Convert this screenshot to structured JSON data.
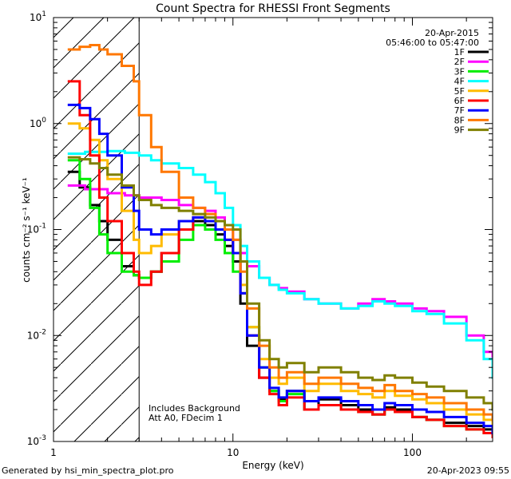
{
  "chart_data": {
    "type": "line",
    "title": "Count Spectra for RHESSI Front Segments",
    "xlabel": "Energy (keV)",
    "ylabel": "counts cm⁻² s⁻¹ keV⁻¹",
    "xscale": "log",
    "yscale": "log",
    "xlim": [
      1,
      280
    ],
    "ylim": [
      0.001,
      10
    ],
    "x_ticks": [
      {
        "value": 1,
        "label": "1"
      },
      {
        "value": 10,
        "label": "10"
      },
      {
        "value": 100,
        "label": "100"
      }
    ],
    "y_ticks": [
      {
        "value": 0.001,
        "base": "10",
        "exp": "-3"
      },
      {
        "value": 0.01,
        "base": "10",
        "exp": "-2"
      },
      {
        "value": 0.1,
        "base": "10",
        "exp": "-1"
      },
      {
        "value": 1,
        "base": "10",
        "exp": "0"
      },
      {
        "value": 10,
        "base": "10",
        "exp": "1"
      }
    ],
    "legend": {
      "date": "20-Apr-2015",
      "time_range": "05:46:00 to 05:47:00",
      "placement": "top-right"
    },
    "annotations": [
      "Includes Background",
      "Att A0, FDecim 1"
    ],
    "hatched_region_keV": [
      1,
      3
    ],
    "series": [
      {
        "name": "1F",
        "color": "#000000",
        "x": [
          1.2,
          1.4,
          1.6,
          1.8,
          2.0,
          2.4,
          2.8,
          3.0,
          3.5,
          4.0,
          5.0,
          6.0,
          7.0,
          8.0,
          9.0,
          10,
          11,
          12,
          14,
          16,
          18,
          20,
          25,
          30,
          40,
          50,
          60,
          70,
          80,
          100,
          120,
          150,
          200,
          250,
          280
        ],
        "y": [
          0.35,
          0.25,
          0.17,
          0.12,
          0.08,
          0.045,
          0.037,
          0.035,
          0.04,
          0.06,
          0.1,
          0.12,
          0.11,
          0.09,
          0.07,
          0.05,
          0.02,
          0.008,
          0.004,
          0.003,
          0.0025,
          0.003,
          0.002,
          0.0025,
          0.0022,
          0.002,
          0.0018,
          0.0021,
          0.002,
          0.0017,
          0.0016,
          0.0015,
          0.0014,
          0.0013,
          0.0012
        ]
      },
      {
        "name": "2F",
        "color": "#ff00ff",
        "x": [
          1.2,
          1.5,
          2.0,
          2.5,
          3.0,
          4.0,
          5.0,
          6.0,
          7.0,
          8.0,
          9.0,
          10,
          11,
          12,
          14,
          16,
          18,
          20,
          25,
          30,
          40,
          50,
          60,
          70,
          80,
          100,
          120,
          150,
          200,
          250,
          280
        ],
        "y": [
          0.26,
          0.24,
          0.22,
          0.21,
          0.2,
          0.19,
          0.17,
          0.16,
          0.15,
          0.13,
          0.1,
          0.08,
          0.06,
          0.045,
          0.035,
          0.03,
          0.028,
          0.026,
          0.022,
          0.02,
          0.018,
          0.02,
          0.022,
          0.021,
          0.02,
          0.018,
          0.017,
          0.015,
          0.01,
          0.007,
          0.005
        ]
      },
      {
        "name": "3F",
        "color": "#00ee00",
        "x": [
          1.2,
          1.4,
          1.6,
          1.8,
          2.0,
          2.4,
          2.8,
          3.0,
          3.5,
          4.0,
          5.0,
          6.0,
          7.0,
          8.0,
          9.0,
          10,
          11,
          12,
          14,
          16,
          18,
          20,
          25,
          30,
          40,
          50,
          60,
          70,
          80,
          100,
          120,
          150,
          200,
          250,
          280
        ],
        "y": [
          0.45,
          0.3,
          0.16,
          0.09,
          0.06,
          0.04,
          0.037,
          0.035,
          0.04,
          0.05,
          0.08,
          0.11,
          0.1,
          0.08,
          0.06,
          0.04,
          0.025,
          0.012,
          0.005,
          0.003,
          0.0024,
          0.0028,
          0.002,
          0.0022,
          0.002,
          0.0019,
          0.0018,
          0.002,
          0.0019,
          0.0017,
          0.0016,
          0.0014,
          0.0013,
          0.0012,
          0.0011
        ]
      },
      {
        "name": "4F",
        "color": "#00ffff",
        "x": [
          1.2,
          1.5,
          2.0,
          2.5,
          3.0,
          3.5,
          4.0,
          5.0,
          6.0,
          7.0,
          8.0,
          9.0,
          10,
          11,
          12,
          14,
          16,
          18,
          20,
          25,
          30,
          40,
          50,
          60,
          70,
          80,
          100,
          120,
          150,
          200,
          250,
          280
        ],
        "y": [
          0.52,
          0.54,
          0.55,
          0.53,
          0.5,
          0.45,
          0.42,
          0.38,
          0.33,
          0.28,
          0.22,
          0.16,
          0.11,
          0.07,
          0.05,
          0.035,
          0.03,
          0.027,
          0.025,
          0.022,
          0.02,
          0.018,
          0.019,
          0.021,
          0.02,
          0.019,
          0.017,
          0.016,
          0.013,
          0.009,
          0.006,
          0.004
        ]
      },
      {
        "name": "5F",
        "color": "#ffbb00",
        "x": [
          1.2,
          1.4,
          1.6,
          1.8,
          2.0,
          2.4,
          2.8,
          3.0,
          3.5,
          4.0,
          5.0,
          6.0,
          7.0,
          8.0,
          9.0,
          10,
          11,
          12,
          14,
          16,
          18,
          20,
          25,
          30,
          40,
          50,
          60,
          70,
          80,
          100,
          120,
          150,
          200,
          250,
          280
        ],
        "y": [
          1.0,
          0.9,
          0.7,
          0.45,
          0.3,
          0.15,
          0.08,
          0.06,
          0.07,
          0.09,
          0.12,
          0.13,
          0.12,
          0.1,
          0.08,
          0.06,
          0.03,
          0.012,
          0.006,
          0.004,
          0.0035,
          0.004,
          0.003,
          0.0035,
          0.003,
          0.0028,
          0.0026,
          0.003,
          0.0027,
          0.0025,
          0.0023,
          0.002,
          0.0018,
          0.0016,
          0.0014
        ]
      },
      {
        "name": "6F",
        "color": "#ff0000",
        "x": [
          1.2,
          1.4,
          1.6,
          1.8,
          2.0,
          2.4,
          2.8,
          3.0,
          3.5,
          4.0,
          5.0,
          6.0,
          7.0,
          8.0,
          9.0,
          10,
          11,
          12,
          14,
          16,
          18,
          20,
          25,
          30,
          40,
          50,
          60,
          70,
          80,
          100,
          120,
          150,
          200,
          250,
          280
        ],
        "y": [
          2.5,
          1.2,
          0.5,
          0.2,
          0.12,
          0.06,
          0.04,
          0.03,
          0.04,
          0.06,
          0.1,
          0.13,
          0.12,
          0.1,
          0.08,
          0.06,
          0.025,
          0.01,
          0.004,
          0.0028,
          0.0022,
          0.0026,
          0.002,
          0.0022,
          0.002,
          0.0019,
          0.0018,
          0.002,
          0.0019,
          0.0017,
          0.0016,
          0.0014,
          0.0013,
          0.0012,
          0.0011
        ]
      },
      {
        "name": "7F",
        "color": "#0000ff",
        "x": [
          1.2,
          1.4,
          1.6,
          1.8,
          2.0,
          2.4,
          2.8,
          3.0,
          3.5,
          4.0,
          5.0,
          6.0,
          7.0,
          8.0,
          9.0,
          10,
          11,
          12,
          14,
          16,
          18,
          20,
          25,
          30,
          40,
          50,
          60,
          70,
          80,
          100,
          120,
          150,
          200,
          250,
          280
        ],
        "y": [
          1.5,
          1.4,
          1.1,
          0.8,
          0.5,
          0.25,
          0.15,
          0.1,
          0.09,
          0.1,
          0.12,
          0.13,
          0.12,
          0.1,
          0.08,
          0.06,
          0.025,
          0.01,
          0.005,
          0.0032,
          0.0026,
          0.003,
          0.0024,
          0.0026,
          0.0024,
          0.0022,
          0.002,
          0.0023,
          0.0022,
          0.002,
          0.0019,
          0.0017,
          0.0015,
          0.0014,
          0.0012
        ]
      },
      {
        "name": "8F",
        "color": "#ff7700",
        "x": [
          1.2,
          1.4,
          1.6,
          1.8,
          2.0,
          2.4,
          2.8,
          3.0,
          3.5,
          4.0,
          5.0,
          6.0,
          7.0,
          8.0,
          9.0,
          10,
          11,
          12,
          14,
          16,
          18,
          20,
          25,
          30,
          40,
          50,
          60,
          70,
          80,
          100,
          120,
          150,
          200,
          250,
          280
        ],
        "y": [
          5.0,
          5.3,
          5.5,
          5.0,
          4.5,
          3.5,
          2.5,
          1.2,
          0.6,
          0.35,
          0.2,
          0.16,
          0.14,
          0.12,
          0.1,
          0.08,
          0.04,
          0.018,
          0.008,
          0.005,
          0.004,
          0.0045,
          0.0035,
          0.004,
          0.0035,
          0.0032,
          0.003,
          0.0034,
          0.003,
          0.0028,
          0.0026,
          0.0023,
          0.002,
          0.0018,
          0.0016
        ]
      },
      {
        "name": "9F",
        "color": "#808000",
        "x": [
          1.2,
          1.4,
          1.6,
          1.8,
          2.0,
          2.4,
          2.8,
          3.0,
          3.5,
          4.0,
          5.0,
          6.0,
          7.0,
          8.0,
          9.0,
          10,
          11,
          12,
          14,
          16,
          18,
          20,
          25,
          30,
          40,
          50,
          60,
          70,
          80,
          100,
          120,
          150,
          200,
          250,
          280
        ],
        "y": [
          0.48,
          0.46,
          0.42,
          0.38,
          0.33,
          0.26,
          0.21,
          0.19,
          0.17,
          0.16,
          0.15,
          0.14,
          0.13,
          0.12,
          0.11,
          0.1,
          0.05,
          0.02,
          0.009,
          0.006,
          0.005,
          0.0055,
          0.0045,
          0.005,
          0.0045,
          0.004,
          0.0038,
          0.0042,
          0.004,
          0.0036,
          0.0033,
          0.003,
          0.0026,
          0.0023,
          0.002
        ]
      }
    ]
  },
  "footer": {
    "left": "Generated by hsi_min_spectra_plot.pro",
    "right": "20-Apr-2023 09:55"
  }
}
